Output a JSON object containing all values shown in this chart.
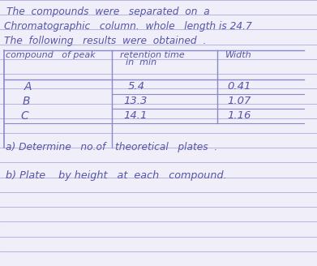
{
  "bg_color": "#f0eef8",
  "line_color": "#8888cc",
  "text_color": "#5555aa",
  "ruled_line_color": "#aaaadd",
  "title_lines": [
    "The  compounds  were   separated  on  a",
    "Chromatographic   column.  whole   length is 24.7",
    "The  following   results  were  obtained  ."
  ],
  "table_header_col1": "compound   of peak",
  "table_header_col2_line1": "retention time",
  "table_header_col2_line2": "in  min",
  "table_header_col3": "Width",
  "table_rows": [
    [
      "A",
      "5.4",
      "0.41"
    ],
    [
      "B",
      "13.3",
      "1.07"
    ],
    [
      "C",
      "14.1",
      "1.16"
    ]
  ],
  "footer_line1": "a) Determine   no.of   theoretical   plates  .",
  "footer_line2": "b) Plate    by height   at  each   compound."
}
